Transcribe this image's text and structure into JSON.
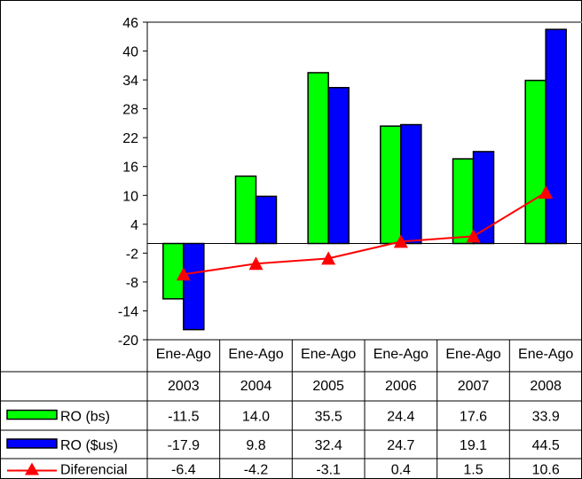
{
  "chart_data": {
    "type": "bar",
    "categories": [
      {
        "line1": "Ene-Ago",
        "line2": "2003"
      },
      {
        "line1": "Ene-Ago",
        "line2": "2004"
      },
      {
        "line1": "Ene-Ago",
        "line2": "2005"
      },
      {
        "line1": "Ene-Ago",
        "line2": "2006"
      },
      {
        "line1": "Ene-Ago",
        "line2": "2007"
      },
      {
        "line1": "Ene-Ago",
        "line2": "2008"
      }
    ],
    "series": [
      {
        "name": "RO (bs)",
        "kind": "bar",
        "color": "#00ff00",
        "values": [
          -11.5,
          14.0,
          35.5,
          24.4,
          17.6,
          33.9
        ],
        "labels": [
          "-11.5",
          "14.0",
          "35.5",
          "24.4",
          "17.6",
          "33.9"
        ]
      },
      {
        "name": "RO ($us)",
        "kind": "bar",
        "color": "#0000ff",
        "values": [
          -17.9,
          9.8,
          32.4,
          24.7,
          19.1,
          44.5
        ],
        "labels": [
          "-17.9",
          "9.8",
          "32.4",
          "24.7",
          "19.1",
          "44.5"
        ]
      },
      {
        "name": "Diferencial",
        "kind": "line",
        "color": "#ff0000",
        "marker": "triangle",
        "values": [
          -6.4,
          -4.2,
          -3.1,
          0.4,
          1.5,
          10.6
        ],
        "labels": [
          "-6.4",
          "-4.2",
          "-3.1",
          "0.4",
          "1.5",
          "10.6"
        ]
      }
    ],
    "yticks": [
      "46",
      "40",
      "34",
      "28",
      "22",
      "16",
      "10",
      "4",
      "-2",
      "-8",
      "-14",
      "-20"
    ],
    "ylim": [
      -20,
      46
    ],
    "grid": false,
    "legend": "data-table"
  }
}
